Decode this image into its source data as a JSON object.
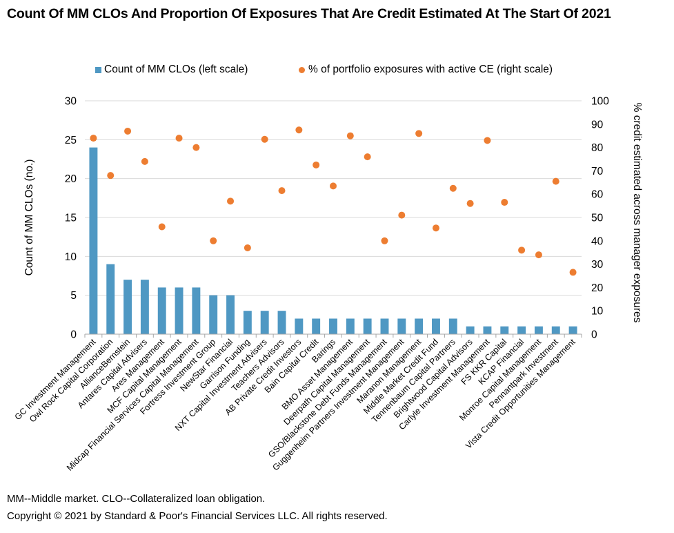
{
  "chart_data": {
    "type": "bar+scatter",
    "title": "Count Of MM CLOs And Proportion Of Exposures That Are Credit Estimated At The Start Of 2021",
    "legend": {
      "placement": "top-center",
      "entries": [
        {
          "name": "Count of MM CLOs (left scale)",
          "marker": "bar",
          "color": "#4f98c3"
        },
        {
          "name": "% of portfolio exposures with active CE (right scale)",
          "marker": "dot",
          "color": "#ed7d31"
        }
      ]
    },
    "y_left": {
      "label": "Count of MM CLOs (no.)",
      "range": [
        0,
        30
      ],
      "ticks": [
        0,
        5,
        10,
        15,
        20,
        25,
        30
      ]
    },
    "y_right": {
      "label": "% credit estimated across manager exposures",
      "range": [
        0,
        100
      ],
      "ticks": [
        0,
        10,
        20,
        30,
        40,
        50,
        60,
        70,
        80,
        90,
        100
      ]
    },
    "grid": true,
    "categories": [
      "GC Investment Management",
      "Owl Rock Capital Corporation",
      "AllianceBernstein",
      "Antares Capital Advisers",
      "Ares Management",
      "MCF Capital Management",
      "Midcap Financial Services Capital Management",
      "Fortress Investment Group",
      "NewStar Financial",
      "Garrison Funding",
      "NXT Capital Investment Advisers",
      "Teachers Advisors",
      "AB Private Credit Investors",
      "Bain Capital Credit",
      "Barings",
      "BMO Asset Management",
      "Deerpath Capital Management",
      "GSO/Blackstone Debt Funds Management",
      "Guggenheim Partners Investment Management",
      "Maranon Management",
      "Middle Market Credit Fund",
      "Tennenbaum Capital Partners",
      "Brightwood Capital Advisors",
      "Carlyle Investment Management",
      "FS KKR Capital",
      "KCAP Financial",
      "Monroe Capital Management",
      "Pennantpark Investment",
      "Vista Credit Opportunities Management"
    ],
    "series": [
      {
        "name": "Count of MM CLOs (left scale)",
        "type": "bar",
        "axis": "left",
        "color": "#4f98c3",
        "values": [
          24,
          9,
          7,
          7,
          6,
          6,
          6,
          5,
          5,
          3,
          3,
          3,
          2,
          2,
          2,
          2,
          2,
          2,
          2,
          2,
          2,
          2,
          1,
          1,
          1,
          1,
          1,
          1,
          1
        ]
      },
      {
        "name": "% of portfolio exposures with active CE (right scale)",
        "type": "scatter",
        "axis": "right",
        "color": "#ed7d31",
        "values": [
          84,
          68,
          87,
          74,
          46,
          84,
          80,
          40,
          57,
          37,
          83.5,
          61.5,
          87.5,
          72.5,
          63.5,
          85,
          76,
          40,
          51,
          86,
          45.5,
          62.5,
          56,
          83,
          56.5,
          36,
          34,
          65.5,
          26.5
        ]
      }
    ]
  },
  "footnote": {
    "line1": "MM--Middle market. CLO--Collateralized loan obligation.",
    "line2": "Copyright © 2021 by Standard & Poor's Financial Services LLC. All rights reserved."
  }
}
